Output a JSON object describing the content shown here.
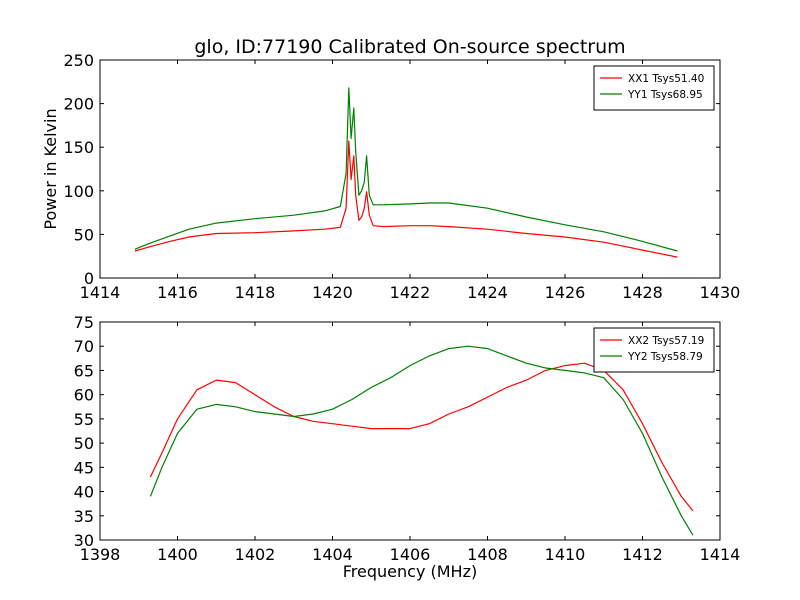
{
  "page": {
    "title": "glo, ID:77190 Calibrated On-source spectrum",
    "colors": {
      "xx": "#ff0000",
      "yy": "#008000"
    }
  },
  "chart_data": [
    {
      "type": "line",
      "title": "glo, ID:77190 Calibrated On-source spectrum",
      "xlabel": "",
      "ylabel": "Power in Kelvin",
      "xlim": [
        1414,
        1430
      ],
      "ylim": [
        0,
        250
      ],
      "x_ticks": [
        "1414",
        "1416",
        "1418",
        "1420",
        "1422",
        "1424",
        "1426",
        "1428",
        "1430"
      ],
      "y_ticks": [
        "0",
        "50",
        "100",
        "150",
        "200",
        "250"
      ],
      "grid": false,
      "legend": "top-right",
      "series": [
        {
          "name": "XX1 Tsys51.40",
          "color": "#ff0000",
          "x": [
            1414.9,
            1415.3,
            1415.8,
            1416.3,
            1417.0,
            1418.0,
            1419.0,
            1419.8,
            1420.2,
            1420.35,
            1420.42,
            1420.48,
            1420.55,
            1420.6,
            1420.68,
            1420.75,
            1420.82,
            1420.88,
            1420.95,
            1421.05,
            1421.3,
            1422.0,
            1422.5,
            1423.0,
            1424.0,
            1425.0,
            1426.0,
            1427.0,
            1428.0,
            1428.9
          ],
          "y": [
            31,
            36,
            42,
            47,
            51,
            52,
            54,
            56,
            58,
            80,
            157,
            113,
            140,
            95,
            66,
            70,
            80,
            99,
            72,
            60,
            59,
            60,
            60,
            59,
            56,
            51,
            47,
            41,
            32,
            24
          ]
        },
        {
          "name": "YY1 Tsys68.95",
          "color": "#008000",
          "x": [
            1414.9,
            1415.3,
            1415.8,
            1416.3,
            1417.0,
            1418.0,
            1419.0,
            1419.8,
            1420.2,
            1420.35,
            1420.42,
            1420.48,
            1420.55,
            1420.6,
            1420.68,
            1420.75,
            1420.82,
            1420.88,
            1420.95,
            1421.05,
            1421.3,
            1422.0,
            1422.5,
            1423.0,
            1424.0,
            1425.0,
            1426.0,
            1427.0,
            1428.0,
            1428.9
          ],
          "y": [
            33,
            40,
            48,
            56,
            63,
            68,
            72,
            77,
            82,
            120,
            218,
            160,
            195,
            145,
            95,
            100,
            110,
            140,
            95,
            84,
            84,
            85,
            86,
            86,
            80,
            70,
            61,
            53,
            42,
            31
          ]
        }
      ]
    },
    {
      "type": "line",
      "title": "",
      "xlabel": "Frequency (MHz)",
      "ylabel": "",
      "xlim": [
        1398,
        1414
      ],
      "ylim": [
        30,
        75
      ],
      "x_ticks": [
        "1398",
        "1400",
        "1402",
        "1404",
        "1406",
        "1408",
        "1410",
        "1412",
        "1414"
      ],
      "y_ticks": [
        "30",
        "35",
        "40",
        "45",
        "50",
        "55",
        "60",
        "65",
        "70",
        "75"
      ],
      "grid": false,
      "legend": "top-right",
      "series": [
        {
          "name": "XX2 Tsys57.19",
          "color": "#ff0000",
          "x": [
            1399.3,
            1399.6,
            1400.0,
            1400.5,
            1401.0,
            1401.5,
            1402.0,
            1402.5,
            1403.0,
            1403.5,
            1404.0,
            1404.5,
            1405.0,
            1405.5,
            1406.0,
            1406.5,
            1407.0,
            1407.5,
            1408.0,
            1408.5,
            1409.0,
            1409.5,
            1410.0,
            1410.5,
            1411.0,
            1411.5,
            1412.0,
            1412.5,
            1413.0,
            1413.3
          ],
          "y": [
            43,
            48,
            55,
            61,
            63,
            62.5,
            60,
            57.5,
            55.5,
            54.5,
            54,
            53.5,
            53,
            53,
            53,
            54,
            56,
            57.5,
            59.5,
            61.5,
            63,
            65,
            66,
            66.5,
            65,
            61,
            54,
            46,
            39,
            36
          ]
        },
        {
          "name": "YY2 Tsys58.79",
          "color": "#008000",
          "x": [
            1399.3,
            1399.6,
            1400.0,
            1400.5,
            1401.0,
            1401.5,
            1402.0,
            1402.5,
            1403.0,
            1403.5,
            1404.0,
            1404.5,
            1405.0,
            1405.5,
            1406.0,
            1406.5,
            1407.0,
            1407.5,
            1408.0,
            1408.5,
            1409.0,
            1409.5,
            1410.0,
            1410.5,
            1411.0,
            1411.5,
            1412.0,
            1412.5,
            1413.0,
            1413.3
          ],
          "y": [
            39,
            45,
            52,
            57,
            58,
            57.5,
            56.5,
            56,
            55.5,
            56,
            57,
            59,
            61.5,
            63.5,
            66,
            68,
            69.5,
            70,
            69.5,
            68,
            66.5,
            65.5,
            65,
            64.5,
            63.5,
            59,
            52,
            43,
            35,
            31
          ]
        }
      ]
    }
  ]
}
